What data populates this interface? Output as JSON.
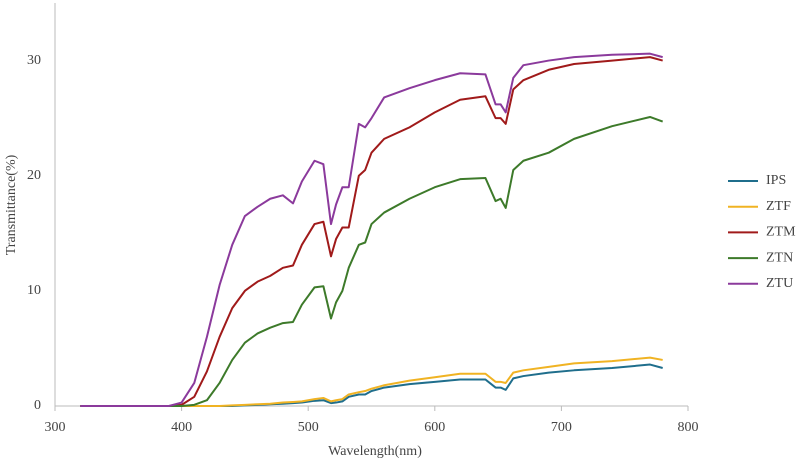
{
  "chart_data": {
    "type": "line",
    "xlabel": "Wavelength(nm)",
    "ylabel": "Transmittance(%)",
    "x": [
      320,
      340,
      360,
      380,
      390,
      400,
      410,
      420,
      430,
      440,
      450,
      460,
      470,
      480,
      488,
      495,
      505,
      512,
      518,
      522,
      527,
      532,
      540,
      545,
      550,
      560,
      580,
      600,
      620,
      640,
      648,
      652,
      656,
      662,
      670,
      690,
      710,
      740,
      770,
      780
    ],
    "series": [
      {
        "name": "IPS",
        "color": "#1f6e8c",
        "values": [
          0,
          0,
          0,
          0,
          0,
          0,
          0,
          0,
          0,
          0,
          0.05,
          0.1,
          0.15,
          0.2,
          0.25,
          0.3,
          0.45,
          0.5,
          0.25,
          0.3,
          0.4,
          0.8,
          1,
          1,
          1.3,
          1.6,
          1.9,
          2.1,
          2.3,
          2.3,
          1.6,
          1.6,
          1.4,
          2.4,
          2.6,
          2.9,
          3.1,
          3.3,
          3.6,
          3.3
        ]
      },
      {
        "name": "ZTF",
        "color": "#f0b323",
        "values": [
          0,
          0,
          0,
          0,
          0,
          0,
          0,
          0,
          0,
          0.05,
          0.1,
          0.15,
          0.2,
          0.3,
          0.35,
          0.4,
          0.6,
          0.7,
          0.4,
          0.5,
          0.6,
          1,
          1.2,
          1.3,
          1.5,
          1.8,
          2.2,
          2.5,
          2.8,
          2.8,
          2.1,
          2.1,
          2,
          2.9,
          3.1,
          3.4,
          3.7,
          3.9,
          4.2,
          4
        ]
      },
      {
        "name": "ZTM",
        "color": "#a01a1a",
        "values": [
          0,
          0,
          0,
          0,
          0,
          0.1,
          0.8,
          3,
          6,
          8.5,
          10,
          10.8,
          11.3,
          12,
          12.2,
          14,
          15.8,
          16,
          13,
          14.5,
          15.5,
          15.5,
          20,
          20.5,
          22,
          23.2,
          24.2,
          25.5,
          26.6,
          26.9,
          25,
          25,
          24.5,
          27.5,
          28.3,
          29.2,
          29.7,
          30,
          30.3,
          30
        ]
      },
      {
        "name": "ZTN",
        "color": "#3d7a2a",
        "values": [
          0,
          0,
          0,
          0,
          0,
          0,
          0.1,
          0.5,
          2,
          4,
          5.5,
          6.3,
          6.8,
          7.2,
          7.3,
          8.8,
          10.3,
          10.4,
          7.6,
          9,
          10,
          12,
          14,
          14.2,
          15.8,
          16.8,
          18,
          19,
          19.7,
          19.8,
          17.8,
          18,
          17.2,
          20.5,
          21.3,
          22,
          23.2,
          24.3,
          25.1,
          24.7
        ]
      },
      {
        "name": "ZTU",
        "color": "#8b3a9c",
        "values": [
          0,
          0,
          0,
          0,
          0,
          0.3,
          2,
          6,
          10.5,
          14,
          16.5,
          17.3,
          18,
          18.3,
          17.6,
          19.5,
          21.3,
          21,
          15.8,
          17.5,
          19,
          19,
          24.5,
          24.2,
          25,
          26.8,
          27.6,
          28.3,
          28.9,
          28.8,
          26.2,
          26.2,
          25.5,
          28.5,
          29.6,
          30,
          30.3,
          30.5,
          30.6,
          30.3
        ]
      }
    ],
    "xlim": [
      300,
      800
    ],
    "xticks": [
      300,
      400,
      500,
      600,
      700,
      800
    ],
    "ylim": [
      0,
      35
    ],
    "yticks": [
      0,
      10,
      20,
      30
    ],
    "grid": false,
    "legend": "right"
  }
}
